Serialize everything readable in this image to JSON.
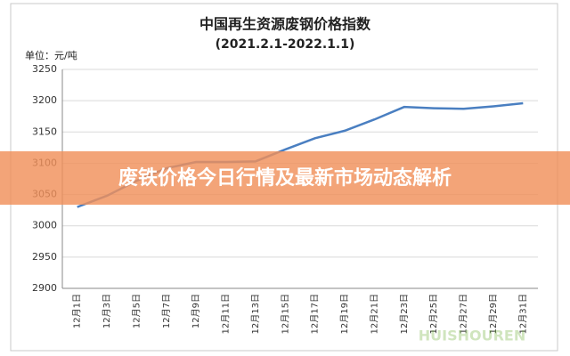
{
  "chart_data": {
    "type": "line",
    "title": "中国再生资源废钢价格指数",
    "subtitle": "(2021.2.1-2022.1.1)",
    "y_label": "单位：元/吨",
    "categories": [
      "12月1日",
      "12月3日",
      "12月5日",
      "12月7日",
      "12月9日",
      "12月11日",
      "12月13日",
      "12月15日",
      "12月17日",
      "12月19日",
      "12月21日",
      "12月23日",
      "12月25日",
      "12月27日",
      "12月29日",
      "12月31日"
    ],
    "series": [
      {
        "name": "废钢价格指数",
        "color": "#4a7fc1",
        "values": [
          3030,
          3048,
          3072,
          3092,
          3102,
          3102,
          3103,
          3122,
          3140,
          3152,
          3170,
          3190,
          3188,
          3187,
          3191,
          3196
        ]
      }
    ],
    "ylim": [
      2900,
      3250
    ],
    "yticks": [
      2900,
      2950,
      3000,
      3050,
      3100,
      3150,
      3200,
      3250
    ],
    "grid": true
  },
  "overlay": {
    "headline": "废铁价格今日行情及最新市场动态解析",
    "watermark": "HUISHOUREN"
  }
}
